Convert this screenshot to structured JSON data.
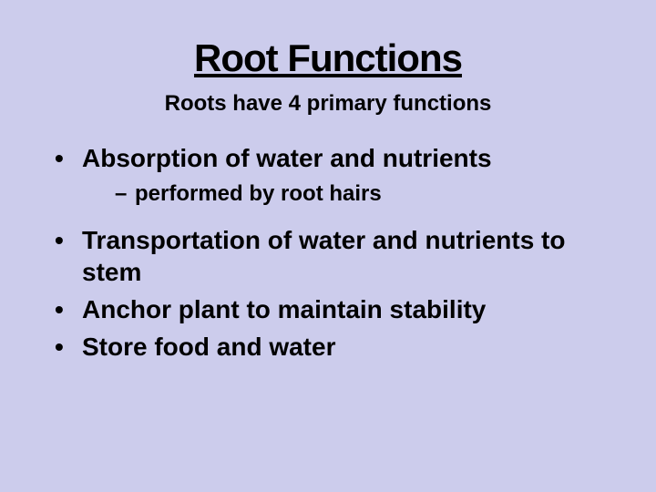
{
  "slide": {
    "title": "Root Functions",
    "subtitle": "Roots have 4 primary functions",
    "bullets": [
      {
        "text": "Absorption of water and nutrients",
        "sub": [
          {
            "text": "performed by root hairs"
          }
        ]
      },
      {
        "text": "Transportation of water and nutrients to stem"
      },
      {
        "text": "Anchor plant to maintain stability"
      },
      {
        "text": "Store food and water"
      }
    ],
    "colors": {
      "background": "#ccccec",
      "text": "#000000"
    },
    "typography": {
      "font_family": "Verdana, Geneva, sans-serif",
      "title_fontsize_pt": 32,
      "subtitle_fontsize_pt": 18,
      "bullet_fontsize_pt": 21,
      "subbullet_fontsize_pt": 18,
      "weight": "bold"
    }
  }
}
